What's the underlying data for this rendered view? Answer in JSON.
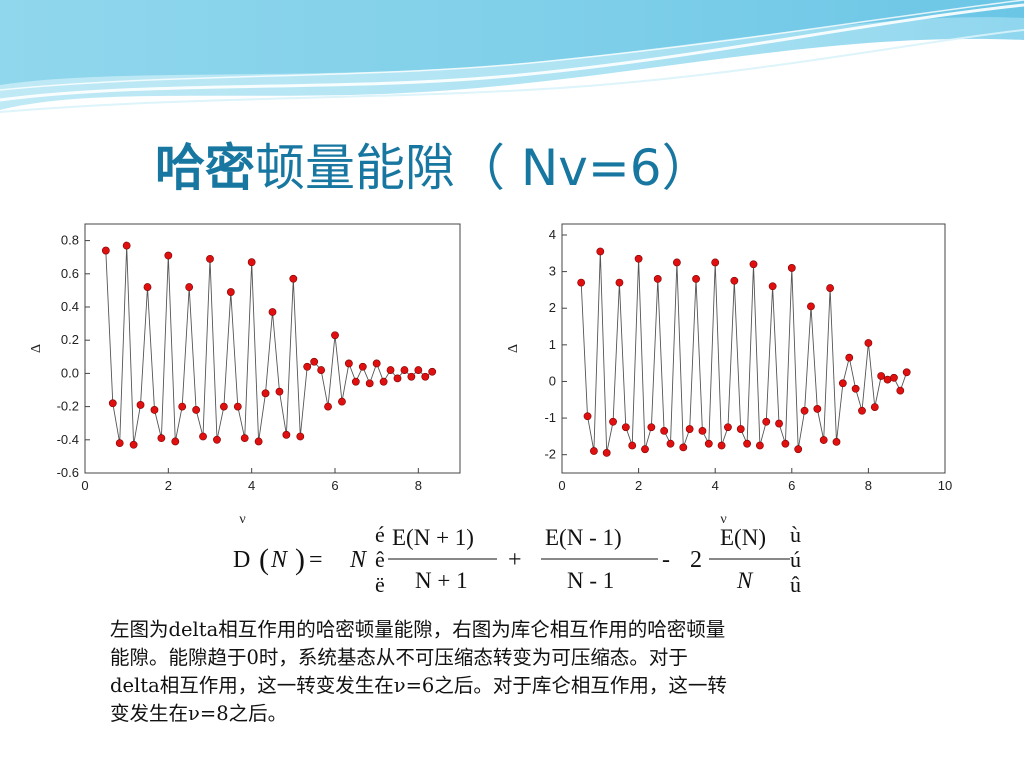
{
  "slide": {
    "title_bold": "哈密",
    "title_rest": "顿量能隙（ Nv=6）"
  },
  "formula": {
    "lhs": "D",
    "var_n": "N",
    "op_eq": "=",
    "frac1_num": "E(N + 1)",
    "frac1_den": "N + 1",
    "op_plus": "+",
    "frac2_num": "E(N - 1)",
    "frac2_den": "N - 1",
    "op_minus": "-",
    "coef": "2",
    "frac3_num": "E(N)",
    "frac3_den": "N",
    "bracket_left": [
      "é",
      "ê",
      "ë"
    ],
    "bracket_right": [
      "ù",
      "ú",
      "û"
    ]
  },
  "caption": {
    "lines": [
      "左图为delta相互作用的哈密顿量能隙，右图为库仑相互作用的哈密顿量",
      "能隙。能隙趋于0时，系统基态从不可压缩态转变为可压缩态。对于",
      "delta相互作用，这一转变发生在ν=6之后。对于库仑相互作用，这一转",
      "变发生在ν=8之后。"
    ]
  },
  "colors": {
    "title": "#1777a0",
    "marker": "#e01010",
    "line": "#555555",
    "banner_light": "#c9ecf6",
    "banner_mid": "#7fd0ea"
  },
  "chart_data": [
    {
      "type": "line",
      "markers": true,
      "xlabel": "ν",
      "ylabel": "Δ",
      "xlim": [
        0,
        9
      ],
      "ylim": [
        -0.6,
        0.9
      ],
      "xticks": [
        0,
        2,
        4,
        6,
        8
      ],
      "yticks": [
        -0.6,
        -0.4,
        -0.2,
        0.0,
        0.2,
        0.4,
        0.6,
        0.8
      ],
      "ytick_labels": [
        "-0.6",
        "-0.4",
        "-0.2",
        "0.0",
        "0.2",
        "0.4",
        "0.6",
        "0.8"
      ],
      "grid": false,
      "x": [
        0.5,
        0.667,
        0.833,
        1.0,
        1.167,
        1.333,
        1.5,
        1.667,
        1.833,
        2.0,
        2.167,
        2.333,
        2.5,
        2.667,
        2.833,
        3.0,
        3.167,
        3.333,
        3.5,
        3.667,
        3.833,
        4.0,
        4.167,
        4.333,
        4.5,
        4.667,
        4.833,
        5.0,
        5.167,
        5.333,
        5.5,
        5.667,
        5.833,
        6.0,
        6.167,
        6.333,
        6.5,
        6.667,
        6.833,
        7.0,
        7.167,
        7.333,
        7.5,
        7.667,
        7.833,
        8.0,
        8.167,
        8.333
      ],
      "y": [
        0.74,
        -0.18,
        -0.42,
        0.77,
        -0.43,
        -0.19,
        0.52,
        -0.22,
        -0.39,
        0.71,
        -0.41,
        -0.2,
        0.52,
        -0.22,
        -0.38,
        0.69,
        -0.4,
        -0.2,
        0.49,
        -0.2,
        -0.39,
        0.67,
        -0.41,
        -0.12,
        0.37,
        -0.11,
        -0.37,
        0.57,
        -0.38,
        0.04,
        0.07,
        0.02,
        -0.2,
        0.23,
        -0.17,
        0.06,
        -0.05,
        0.04,
        -0.06,
        0.06,
        -0.05,
        0.02,
        -0.03,
        0.02,
        -0.02,
        0.02,
        -0.02,
        0.01
      ]
    },
    {
      "type": "line",
      "markers": true,
      "xlabel": "ν",
      "ylabel": "Δ",
      "xlim": [
        0,
        10
      ],
      "ylim": [
        -2.5,
        4.3
      ],
      "xticks": [
        0,
        2,
        4,
        6,
        8,
        10
      ],
      "yticks": [
        -2,
        -1,
        0,
        1,
        2,
        3,
        4
      ],
      "ytick_labels": [
        "-2",
        "-1",
        "0",
        "1",
        "2",
        "3",
        "4"
      ],
      "grid": false,
      "x": [
        0.5,
        0.667,
        0.833,
        1.0,
        1.167,
        1.333,
        1.5,
        1.667,
        1.833,
        2.0,
        2.167,
        2.333,
        2.5,
        2.667,
        2.833,
        3.0,
        3.167,
        3.333,
        3.5,
        3.667,
        3.833,
        4.0,
        4.167,
        4.333,
        4.5,
        4.667,
        4.833,
        5.0,
        5.167,
        5.333,
        5.5,
        5.667,
        5.833,
        6.0,
        6.167,
        6.333,
        6.5,
        6.667,
        6.833,
        7.0,
        7.167,
        7.333,
        7.5,
        7.667,
        7.833,
        8.0,
        8.167,
        8.333,
        8.5,
        8.667,
        8.833,
        9.0
      ],
      "y": [
        2.7,
        -0.95,
        -1.9,
        3.55,
        -1.95,
        -1.1,
        2.7,
        -1.25,
        -1.75,
        3.35,
        -1.85,
        -1.25,
        2.8,
        -1.35,
        -1.7,
        3.25,
        -1.8,
        -1.3,
        2.8,
        -1.35,
        -1.7,
        3.25,
        -1.75,
        -1.25,
        2.75,
        -1.3,
        -1.7,
        3.2,
        -1.75,
        -1.1,
        2.6,
        -1.15,
        -1.7,
        3.1,
        -1.85,
        -0.8,
        2.05,
        -0.75,
        -1.6,
        2.55,
        -1.65,
        -0.05,
        0.65,
        -0.2,
        -0.8,
        1.05,
        -0.7,
        0.15,
        0.05,
        0.1,
        -0.25,
        0.25
      ]
    }
  ]
}
